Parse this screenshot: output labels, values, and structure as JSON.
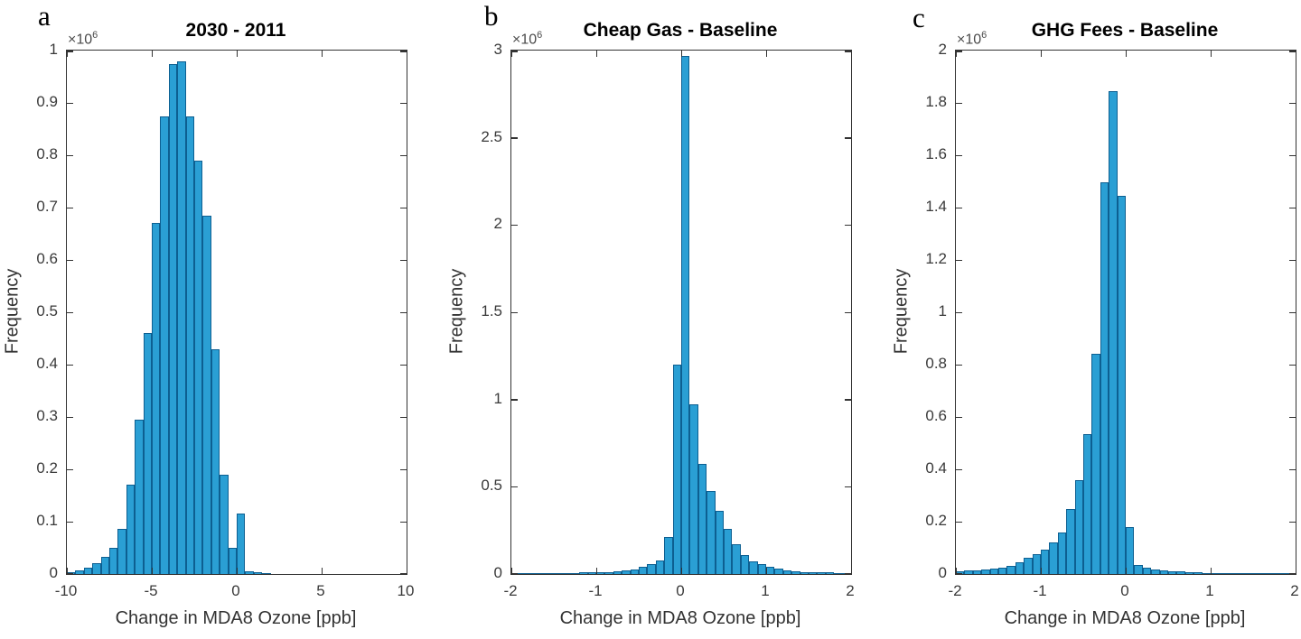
{
  "figure": {
    "offset_base": "×10",
    "offset_exp": "6",
    "bar_face_color": "#2a9fd4",
    "bar_edge_color": "#0d5f91",
    "axis_color": "#333333",
    "tick_label_color": "#3a3a3a"
  },
  "chart_data": {
    "type": "bar",
    "subtype": "histogram",
    "y_unit_multiplier": 1000000,
    "panels": [
      {
        "panel_letter": "a",
        "title": "2030 - 2011",
        "xlabel": "Change in MDA8 Ozone [ppb]",
        "ylabel": "Frequency",
        "y_offset_text": "×10⁶",
        "xlim": [
          -10,
          10
        ],
        "ylim_e6": [
          0,
          1
        ],
        "xticks": [
          -10,
          -5,
          0,
          5,
          10
        ],
        "xtick_labels": [
          "-10",
          "-5",
          "0",
          "5",
          "10"
        ],
        "yticks_e6": [
          0,
          0.1,
          0.2,
          0.3,
          0.4,
          0.5,
          0.6,
          0.7,
          0.8,
          0.9,
          1
        ],
        "ytick_labels": [
          "0",
          "0.1",
          "0.2",
          "0.3",
          "0.4",
          "0.5",
          "0.6",
          "0.7",
          "0.8",
          "0.9",
          "1"
        ],
        "grid": false,
        "legend": null,
        "bin_start": -10,
        "bin_width": 0.5,
        "frequencies_e6": [
          0.004,
          0.007,
          0.012,
          0.02,
          0.032,
          0.05,
          0.086,
          0.17,
          0.295,
          0.46,
          0.67,
          0.875,
          0.975,
          0.98,
          0.875,
          0.79,
          0.685,
          0.43,
          0.19,
          0.05,
          0.115,
          0.006,
          0.004,
          0.002
        ]
      },
      {
        "panel_letter": "b",
        "title": "Cheap Gas - Baseline",
        "xlabel": "Change in MDA8 Ozone [ppb]",
        "ylabel": "Frequency",
        "y_offset_text": "×10⁶",
        "xlim": [
          -2,
          2
        ],
        "ylim_e6": [
          0,
          3
        ],
        "xticks": [
          -2,
          -1,
          0,
          1,
          2
        ],
        "xtick_labels": [
          "-2",
          "-1",
          "0",
          "1",
          "2"
        ],
        "yticks_e6": [
          0,
          0.5,
          1,
          1.5,
          2,
          2.5,
          3
        ],
        "ytick_labels": [
          "0",
          "0.5",
          "1",
          "1.5",
          "2",
          "2.5",
          "3"
        ],
        "grid": false,
        "legend": null,
        "bin_start": -2,
        "bin_width": 0.1,
        "frequencies_e6": [
          0.003,
          0.003,
          0.004,
          0.004,
          0.005,
          0.005,
          0.006,
          0.007,
          0.008,
          0.009,
          0.01,
          0.012,
          0.015,
          0.02,
          0.028,
          0.04,
          0.055,
          0.08,
          0.21,
          1.2,
          2.97,
          0.975,
          0.63,
          0.475,
          0.36,
          0.26,
          0.17,
          0.11,
          0.075,
          0.055,
          0.04,
          0.03,
          0.022,
          0.017,
          0.013,
          0.011,
          0.009,
          0.008,
          0.006,
          0.005
        ]
      },
      {
        "panel_letter": "c",
        "title": "GHG Fees - Baseline",
        "xlabel": "Change in MDA8 Ozone [ppb]",
        "ylabel": "Frequency",
        "y_offset_text": "×10⁶",
        "xlim": [
          -2,
          2
        ],
        "ylim_e6": [
          0,
          2
        ],
        "xticks": [
          -2,
          -1,
          0,
          1,
          2
        ],
        "xtick_labels": [
          "-2",
          "-1",
          "0",
          "1",
          "2"
        ],
        "yticks_e6": [
          0,
          0.2,
          0.4,
          0.6,
          0.8,
          1,
          1.2,
          1.4,
          1.6,
          1.8,
          2
        ],
        "ytick_labels": [
          "0",
          "0.2",
          "0.4",
          "0.6",
          "0.8",
          "1",
          "1.2",
          "1.4",
          "1.6",
          "1.8",
          "2"
        ],
        "grid": false,
        "legend": null,
        "bin_start": -2,
        "bin_width": 0.1,
        "frequencies_e6": [
          0.012,
          0.013,
          0.015,
          0.018,
          0.021,
          0.025,
          0.031,
          0.045,
          0.063,
          0.075,
          0.092,
          0.12,
          0.16,
          0.25,
          0.36,
          0.535,
          0.84,
          1.495,
          1.845,
          1.445,
          0.18,
          0.035,
          0.025,
          0.018,
          0.014,
          0.011,
          0.009,
          0.008,
          0.006,
          0.005,
          0.005,
          0.004,
          0.004,
          0.003,
          0.003,
          0.003,
          0.002,
          0.002,
          0.002,
          0.002
        ]
      }
    ]
  }
}
